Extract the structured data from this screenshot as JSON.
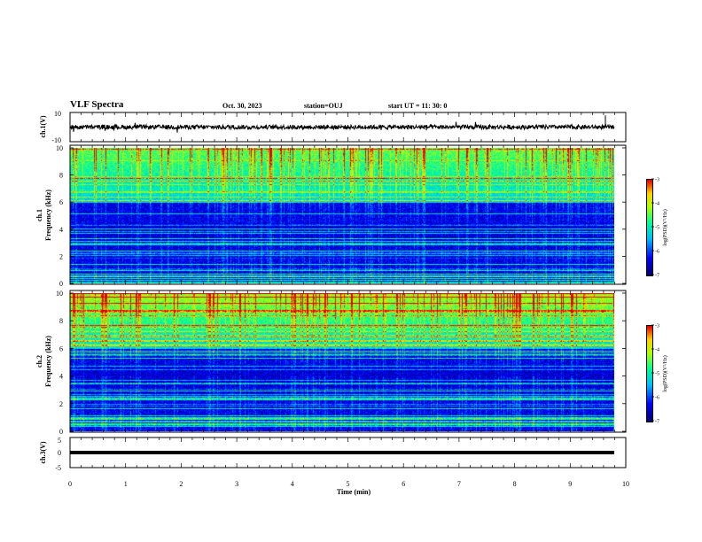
{
  "header": {
    "title": "VLF Spectra",
    "date": "Oct. 30, 2023",
    "station": "station=OUJ",
    "start_ut": "start UT =  11: 30: 0"
  },
  "colors": {
    "spectrum_colormap": [
      "#000080",
      "#0000ff",
      "#00c8ff",
      "#00ff80",
      "#ffff00",
      "#ff0000"
    ],
    "waveform_color": "#000000"
  },
  "chart_data": [
    {
      "type": "line",
      "panel": "ch1-waveform",
      "ylabel": "ch.1(V)",
      "ylim": [
        -10,
        10
      ],
      "y_tick_labels": [
        "10",
        "-10"
      ],
      "xlim": [
        0,
        10
      ],
      "series": [
        {
          "approx_level_v": 0.0,
          "approx_amplitude_v": 1.5
        }
      ]
    },
    {
      "type": "heatmap",
      "panel": "ch1-spectrogram",
      "ylabel_line1": "ch.1",
      "ylabel_line2": "Frequency (kHz)",
      "ylim": [
        0,
        10
      ],
      "y_tick_labels": [
        "0",
        "2",
        "4",
        "6",
        "8",
        "10"
      ],
      "xlim": [
        0,
        9.8
      ],
      "colorbar": {
        "label": "log(PSD)(V²/Hz)",
        "range": [
          -7,
          -3
        ],
        "tick_labels": [
          "-3",
          "-4",
          "-5",
          "-6",
          "-7"
        ]
      }
    },
    {
      "type": "heatmap",
      "panel": "ch2-spectrogram",
      "ylabel_line1": "ch.2",
      "ylabel_line2": "Frequency (kHz)",
      "ylim": [
        0,
        10
      ],
      "y_tick_labels": [
        "0",
        "2",
        "4",
        "6",
        "8",
        "10"
      ],
      "xlim": [
        0,
        9.8
      ],
      "colorbar": {
        "label": "log(PSD)(V²/Hz)",
        "range": [
          -7,
          -3
        ],
        "tick_labels": [
          "-3",
          "-4",
          "-5",
          "-6",
          "-7"
        ]
      }
    },
    {
      "type": "line",
      "panel": "ch3-waveform",
      "ylabel": "ch.3(V)",
      "ylim": [
        -5,
        5
      ],
      "y_tick_labels": [
        "5",
        "0",
        "-5"
      ],
      "xlim": [
        0,
        9.8
      ],
      "series": [
        {
          "approx_level_v": 0.0
        }
      ]
    }
  ],
  "x_axis": {
    "label": "Time  (min)",
    "range": [
      0,
      10
    ],
    "tick_labels": [
      "0",
      "1",
      "2",
      "3",
      "4",
      "5",
      "6",
      "7",
      "8",
      "9",
      "10"
    ]
  }
}
